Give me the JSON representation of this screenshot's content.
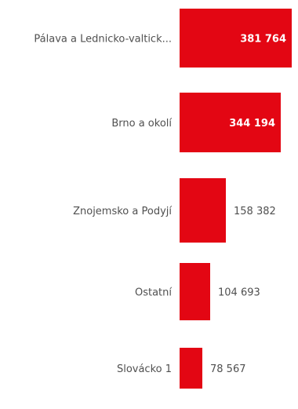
{
  "chart_data": {
    "type": "bar",
    "orientation": "horizontal",
    "categories": [
      "Pálava a Lednicko-valtick...",
      "Brno a okolí",
      "Znojemsko a Podyjí",
      "Ostatní",
      "Slovácko 1"
    ],
    "values": [
      381764,
      344194,
      158382,
      104693,
      78567
    ],
    "value_labels": [
      "381 764",
      "344 194",
      "158 382",
      "104 693",
      "78 567"
    ],
    "title": "",
    "xlabel": "",
    "ylabel": "",
    "xlim": [
      0,
      381764
    ],
    "grid": false,
    "legend": "none",
    "colors": {
      "bar": "#e30613",
      "label": "#505050",
      "value_inside": "#ffffff",
      "value_outside": "#505050"
    }
  }
}
